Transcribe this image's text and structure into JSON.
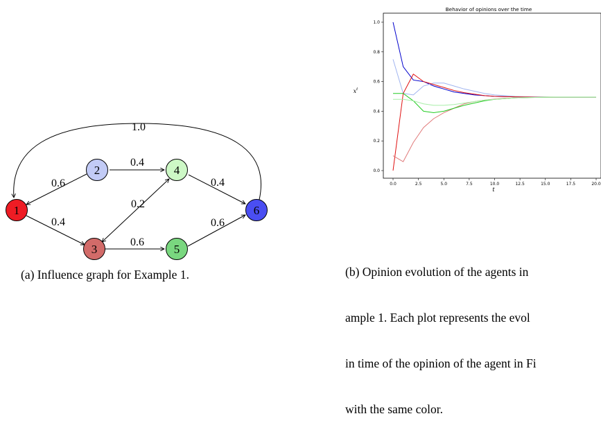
{
  "figure_a": {
    "caption": "(a) Influence graph for Example 1.",
    "nodes": [
      {
        "id": "1",
        "color": "#ee1c24"
      },
      {
        "id": "2",
        "color": "#c2cbf6"
      },
      {
        "id": "3",
        "color": "#d26b69"
      },
      {
        "id": "4",
        "color": "#cdf8c6"
      },
      {
        "id": "5",
        "color": "#79d77f"
      },
      {
        "id": "6",
        "color": "#4a4ef2"
      }
    ],
    "edges": [
      {
        "from": "6",
        "to": "1",
        "weight": "1.0"
      },
      {
        "from": "2",
        "to": "1",
        "weight": "0.6"
      },
      {
        "from": "1",
        "to": "3",
        "weight": "0.4"
      },
      {
        "from": "2",
        "to": "4",
        "weight": "0.4"
      },
      {
        "from": "3",
        "to": "4",
        "weight": "0.2"
      },
      {
        "from": "4",
        "to": "3",
        "weight": ""
      },
      {
        "from": "4",
        "to": "6",
        "weight": "0.4"
      },
      {
        "from": "3",
        "to": "5",
        "weight": "0.6"
      },
      {
        "from": "5",
        "to": "6",
        "weight": "0.6"
      }
    ]
  },
  "figure_b": {
    "caption_lines": [
      "(b) Opinion evolution of the agents in",
      "ample 1. Each plot represents the evol",
      "in time of the opinion of the agent in Fi",
      "with the same color."
    ]
  },
  "chart_data": {
    "type": "line",
    "title": "Behavior of opinions over the time",
    "xlabel": "t",
    "ylabel": "x",
    "ylabel_superscript": "t",
    "xlim": [
      0,
      20
    ],
    "ylim": [
      0,
      1
    ],
    "xticks": [
      "0.0",
      "2.5",
      "5.0",
      "7.5",
      "10.0",
      "12.5",
      "15.0",
      "17.5",
      "20.0"
    ],
    "yticks": [
      "0.0",
      "0.2",
      "0.4",
      "0.6",
      "0.8",
      "1.0"
    ],
    "grid": false,
    "x": [
      0,
      1,
      2,
      3,
      4,
      5,
      6,
      7,
      8,
      9,
      10,
      11,
      12,
      13,
      14,
      15,
      16,
      17,
      18,
      19,
      20
    ],
    "series": [
      {
        "color": "#0000cc",
        "values": [
          1.0,
          0.7,
          0.61,
          0.6,
          0.57,
          0.55,
          0.53,
          0.52,
          0.51,
          0.505,
          0.5,
          0.498,
          0.497,
          0.496,
          0.495,
          0.495,
          0.495,
          0.495,
          0.495,
          0.495,
          0.495
        ]
      },
      {
        "color": "#a0b4f0",
        "values": [
          0.75,
          0.52,
          0.51,
          0.57,
          0.59,
          0.59,
          0.57,
          0.55,
          0.535,
          0.52,
          0.51,
          0.505,
          0.5,
          0.498,
          0.497,
          0.496,
          0.495,
          0.495,
          0.495,
          0.495,
          0.495
        ]
      },
      {
        "color": "#e01010",
        "values": [
          0.0,
          0.52,
          0.65,
          0.6,
          0.58,
          0.56,
          0.54,
          0.525,
          0.515,
          0.505,
          0.5,
          0.498,
          0.497,
          0.496,
          0.495,
          0.495,
          0.495,
          0.495,
          0.495,
          0.495,
          0.495
        ]
      },
      {
        "color": "#e07a7a",
        "values": [
          0.1,
          0.06,
          0.19,
          0.29,
          0.35,
          0.39,
          0.42,
          0.45,
          0.465,
          0.475,
          0.482,
          0.487,
          0.49,
          0.492,
          0.493,
          0.494,
          0.495,
          0.495,
          0.495,
          0.495,
          0.495
        ]
      },
      {
        "color": "#22cc22",
        "values": [
          0.52,
          0.52,
          0.47,
          0.4,
          0.39,
          0.4,
          0.42,
          0.44,
          0.455,
          0.47,
          0.48,
          0.485,
          0.49,
          0.492,
          0.493,
          0.494,
          0.495,
          0.495,
          0.495,
          0.495,
          0.495
        ]
      },
      {
        "color": "#a8eea8",
        "values": [
          0.48,
          0.48,
          0.47,
          0.45,
          0.44,
          0.44,
          0.445,
          0.455,
          0.465,
          0.475,
          0.48,
          0.485,
          0.49,
          0.492,
          0.493,
          0.494,
          0.495,
          0.495,
          0.495,
          0.495,
          0.495
        ]
      }
    ]
  }
}
